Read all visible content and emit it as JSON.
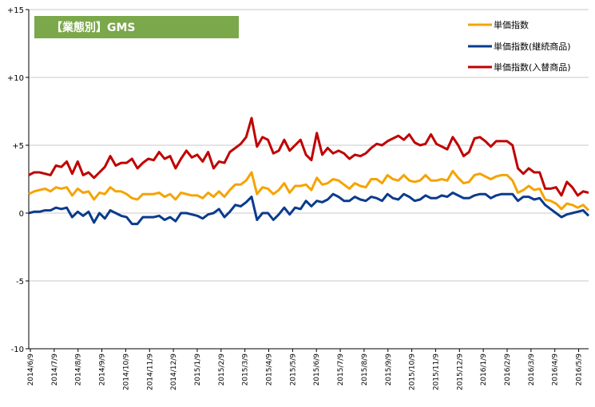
{
  "chart_data": {
    "type": "line",
    "title": "【業態別】GMS",
    "ylim": [
      -10,
      15
    ],
    "y_ticks": [
      15,
      10,
      5,
      0,
      -5,
      -10
    ],
    "y_tick_labels": [
      "+15",
      "+10",
      "+5",
      "0",
      "-5",
      "-10"
    ],
    "x_tick_labels": [
      "2014/6/9",
      "2014/7/9",
      "2014/8/9",
      "2014/9/9",
      "2014/10/9",
      "2014/11/9",
      "2014/12/9",
      "2015/1/9",
      "2015/2/9",
      "2015/3/9",
      "2015/4/9",
      "2015/5/9",
      "2015/6/9",
      "2015/7/9",
      "2015/8/9",
      "2015/9/9",
      "2015/10/9",
      "2015/11/9",
      "2015/12/9",
      "2016/1/9",
      "2016/2/9",
      "2016/3/9",
      "2016/4/9",
      "2016/5/9"
    ],
    "grid": true,
    "legend_position": "top-right",
    "series": [
      {
        "name": "単価指数",
        "color": "#F5A300",
        "values": [
          1.4,
          1.6,
          1.7,
          1.8,
          1.6,
          1.9,
          1.8,
          1.9,
          1.3,
          1.8,
          1.5,
          1.6,
          1.0,
          1.5,
          1.4,
          1.9,
          1.6,
          1.6,
          1.4,
          1.1,
          1.0,
          1.4,
          1.4,
          1.4,
          1.5,
          1.2,
          1.4,
          1.0,
          1.5,
          1.4,
          1.3,
          1.3,
          1.1,
          1.5,
          1.2,
          1.6,
          1.2,
          1.7,
          2.1,
          2.1,
          2.4,
          3.0,
          1.4,
          1.9,
          1.8,
          1.4,
          1.7,
          2.2,
          1.5,
          2.0,
          2.0,
          2.1,
          1.7,
          2.6,
          2.1,
          2.2,
          2.5,
          2.4,
          2.1,
          1.8,
          2.2,
          2.0,
          1.9,
          2.5,
          2.5,
          2.2,
          2.8,
          2.5,
          2.4,
          2.8,
          2.4,
          2.3,
          2.4,
          2.8,
          2.4,
          2.4,
          2.5,
          2.4,
          3.1,
          2.6,
          2.2,
          2.3,
          2.8,
          2.9,
          2.7,
          2.5,
          2.7,
          2.8,
          2.8,
          2.4,
          1.5,
          1.7,
          2.0,
          1.7,
          1.8,
          1.0,
          0.9,
          0.7,
          0.3,
          0.7,
          0.6,
          0.4,
          0.6,
          0.2
        ]
      },
      {
        "name": "単価指数(継続商品)",
        "color": "#0A3B8C",
        "values": [
          0.0,
          0.1,
          0.1,
          0.2,
          0.2,
          0.4,
          0.3,
          0.4,
          -0.3,
          0.1,
          -0.2,
          0.1,
          -0.7,
          0.0,
          -0.4,
          0.2,
          0.0,
          -0.2,
          -0.3,
          -0.8,
          -0.8,
          -0.3,
          -0.3,
          -0.3,
          -0.2,
          -0.5,
          -0.3,
          -0.6,
          0.0,
          0.0,
          -0.1,
          -0.2,
          -0.4,
          -0.1,
          0.0,
          0.3,
          -0.3,
          0.1,
          0.6,
          0.5,
          0.8,
          1.2,
          -0.5,
          0.0,
          0.0,
          -0.5,
          -0.1,
          0.4,
          -0.1,
          0.4,
          0.3,
          0.9,
          0.5,
          0.9,
          0.8,
          1.0,
          1.4,
          1.2,
          0.9,
          0.9,
          1.2,
          1.0,
          0.9,
          1.2,
          1.1,
          0.9,
          1.4,
          1.1,
          1.0,
          1.4,
          1.2,
          0.9,
          1.0,
          1.3,
          1.1,
          1.1,
          1.3,
          1.2,
          1.5,
          1.3,
          1.1,
          1.1,
          1.3,
          1.4,
          1.4,
          1.1,
          1.3,
          1.4,
          1.4,
          1.4,
          0.9,
          1.2,
          1.2,
          1.0,
          1.1,
          0.6,
          0.3,
          0.0,
          -0.3,
          -0.1,
          0.0,
          0.1,
          0.2,
          -0.2
        ]
      },
      {
        "name": "単価指数(入替商品)",
        "color": "#C00000",
        "values": [
          2.8,
          3.0,
          3.0,
          2.9,
          2.8,
          3.5,
          3.4,
          3.8,
          2.9,
          3.8,
          2.8,
          3.0,
          2.6,
          3.0,
          3.4,
          4.2,
          3.5,
          3.7,
          3.7,
          4.0,
          3.3,
          3.7,
          4.0,
          3.9,
          4.5,
          4.0,
          4.2,
          3.3,
          4.0,
          4.6,
          4.1,
          4.3,
          3.8,
          4.5,
          3.3,
          3.8,
          3.7,
          4.5,
          4.8,
          5.1,
          5.6,
          7.0,
          4.9,
          5.6,
          5.4,
          4.4,
          4.6,
          5.4,
          4.6,
          5.0,
          5.4,
          4.3,
          3.9,
          5.9,
          4.3,
          4.8,
          4.4,
          4.6,
          4.4,
          4.0,
          4.3,
          4.2,
          4.4,
          4.8,
          5.1,
          5.0,
          5.3,
          5.5,
          5.7,
          5.4,
          5.8,
          5.2,
          5.0,
          5.1,
          5.8,
          5.1,
          4.9,
          4.7,
          5.6,
          5.0,
          4.2,
          4.5,
          5.5,
          5.6,
          5.3,
          4.9,
          5.3,
          5.3,
          5.3,
          5.0,
          3.3,
          2.9,
          3.3,
          3.0,
          3.0,
          1.8,
          1.8,
          1.9,
          1.3,
          2.3,
          1.9,
          1.3,
          1.6,
          1.5
        ]
      }
    ]
  }
}
